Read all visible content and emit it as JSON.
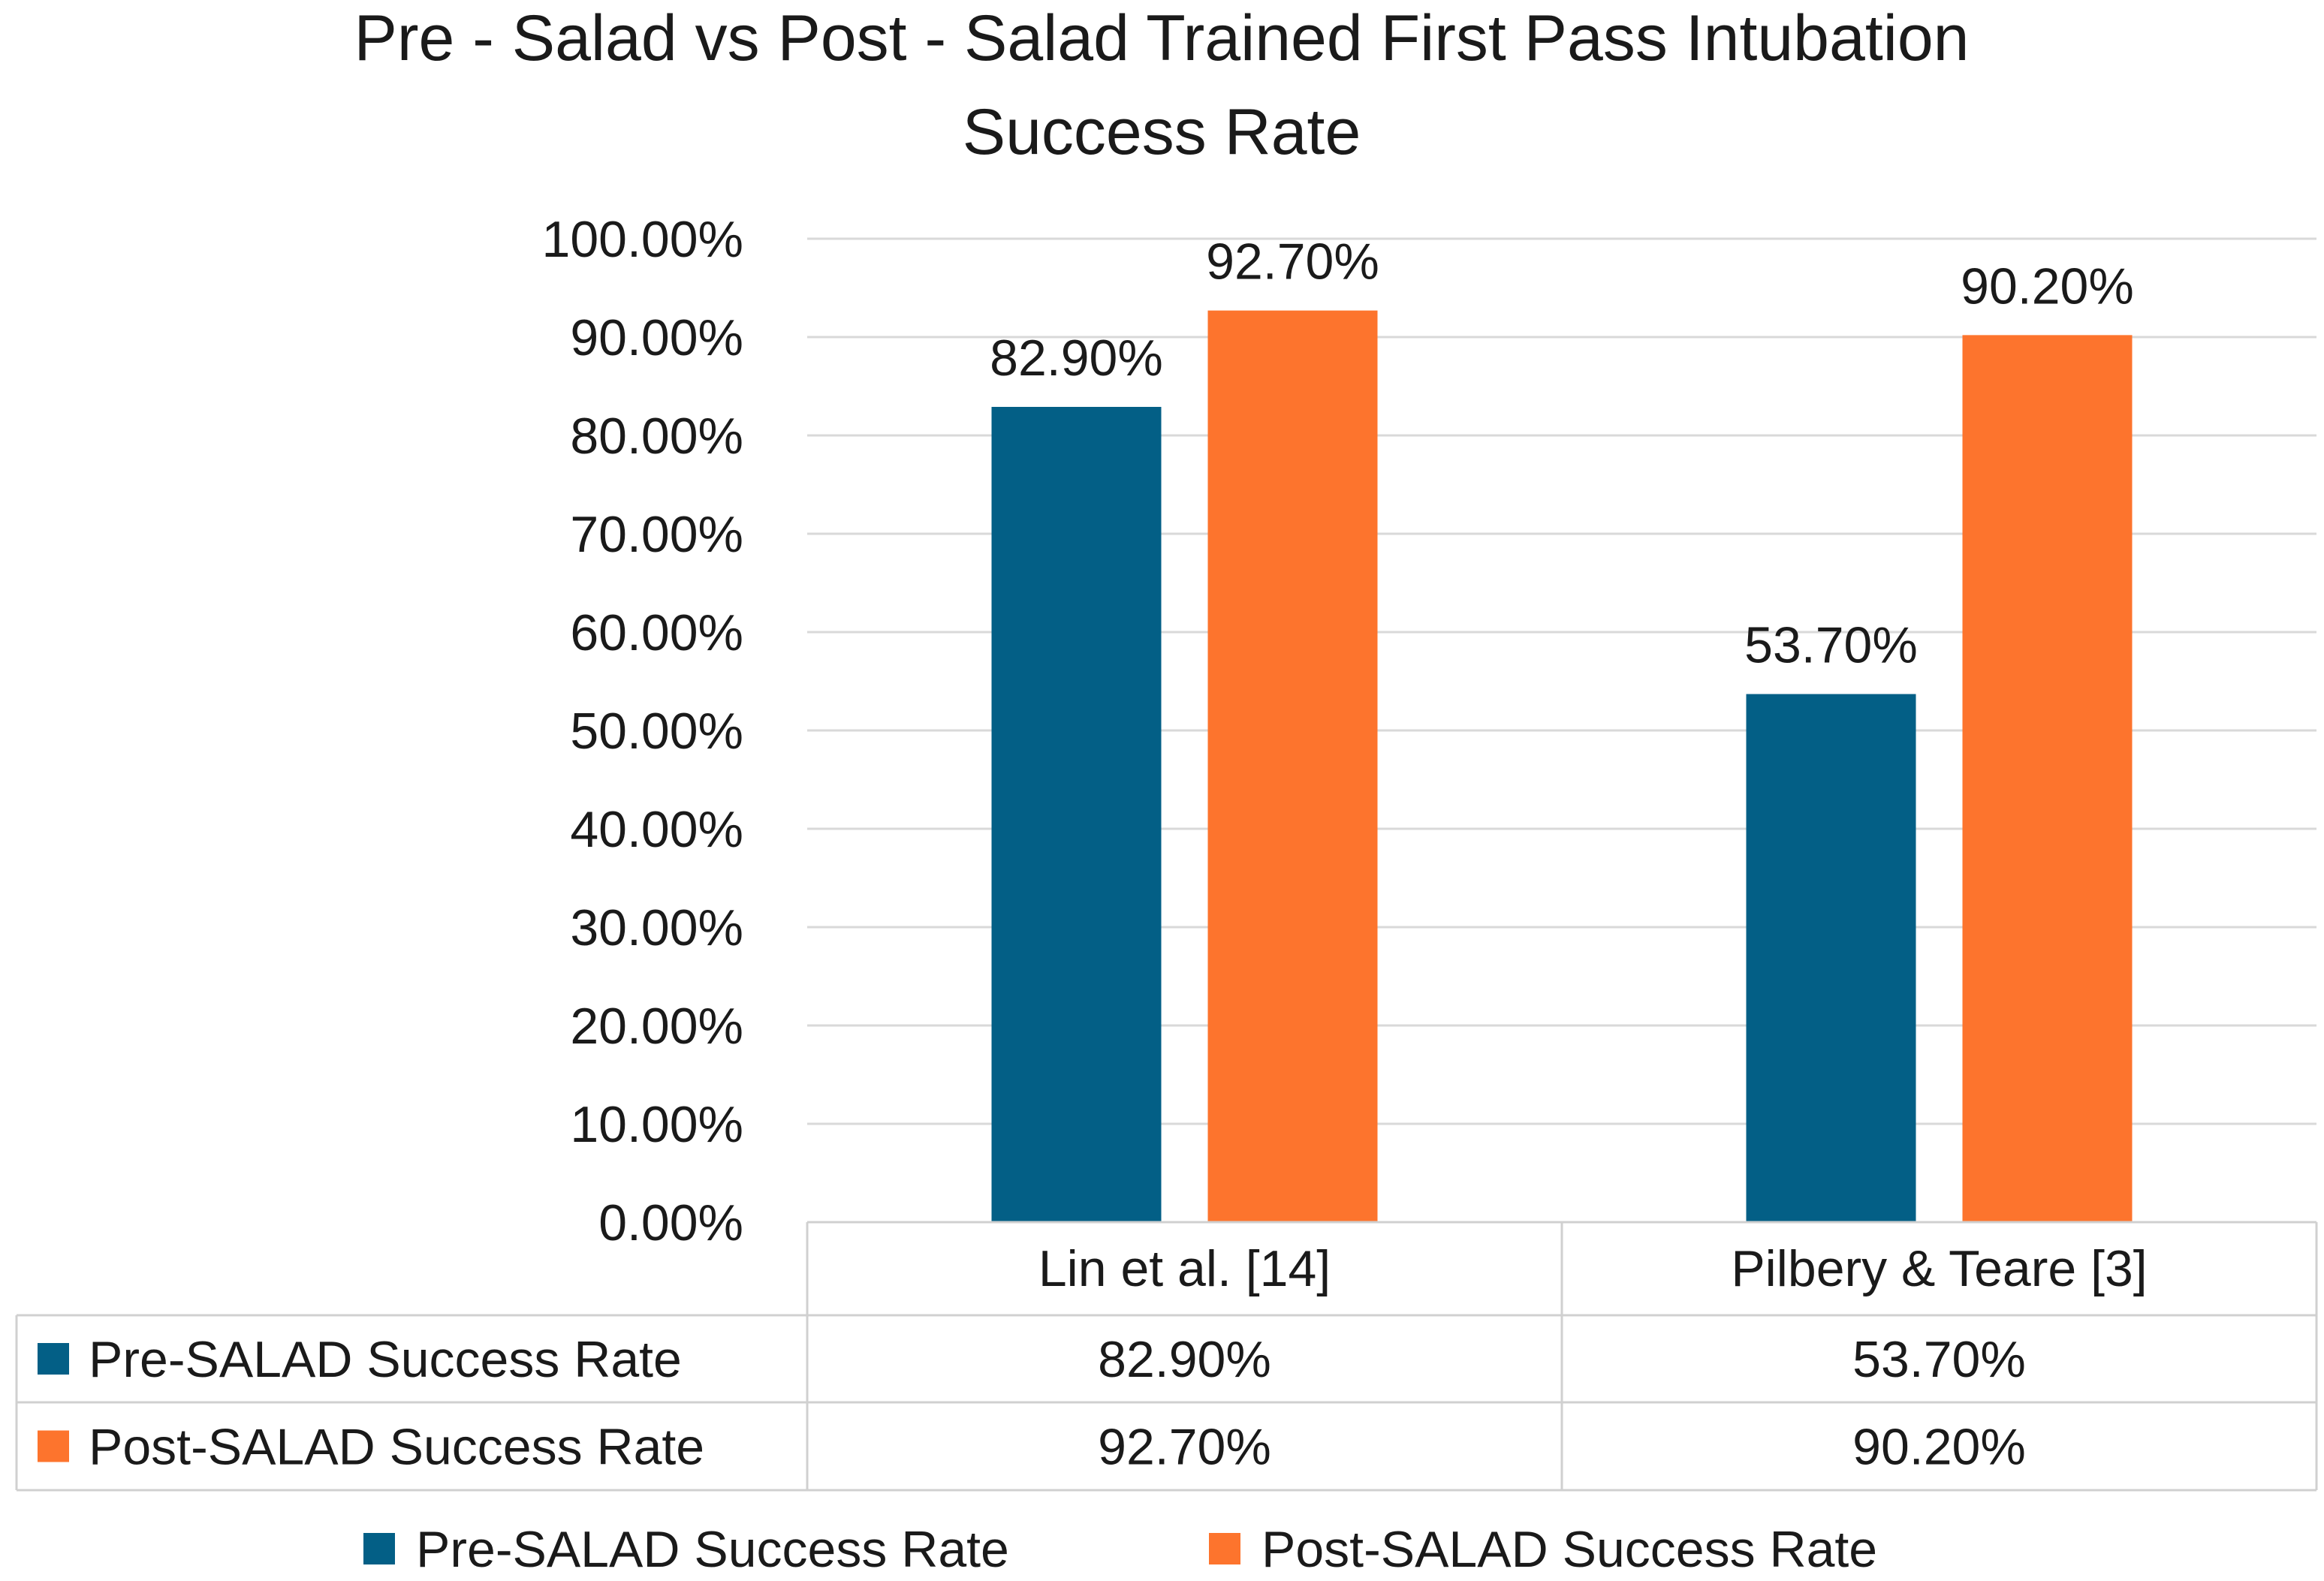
{
  "chart_data": {
    "type": "bar",
    "title_lines": [
      "Pre - Salad vs Post - Salad Trained First Pass Intubation",
      "Success Rate"
    ],
    "categories": [
      "Lin et al. [14]",
      "Pilbery & Teare [3]"
    ],
    "series": [
      {
        "name": "Pre-SALAD Success Rate",
        "color": "#035f86",
        "values": [
          82.9,
          53.7
        ],
        "labels": [
          "82.90%",
          "53.70%"
        ]
      },
      {
        "name": "Post-SALAD Success Rate",
        "color": "#fd742d",
        "values": [
          92.7,
          90.2
        ],
        "labels": [
          "92.70%",
          "90.20%"
        ]
      }
    ],
    "ylim": [
      0,
      100
    ],
    "y_ticks": [
      "0.00%",
      "10.00%",
      "20.00%",
      "30.00%",
      "40.00%",
      "50.00%",
      "60.00%",
      "70.00%",
      "80.00%",
      "90.00%",
      "100.00%"
    ],
    "grid": true,
    "data_table": true,
    "legend_position": "bottom"
  }
}
